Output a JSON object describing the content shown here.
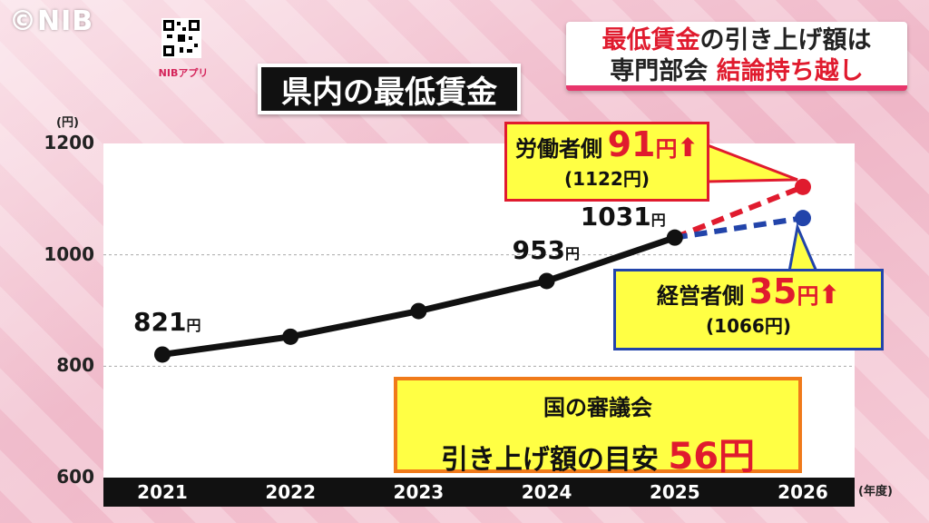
{
  "watermark": "©NIB",
  "qr_label": "NIBアプリ",
  "title": "県内の最低賃金",
  "headline": {
    "line1_red": "最低賃金",
    "line1_rest": "の引き上げ額は",
    "line2_dark": "専門部会",
    "line2_red": "結論持ち越し"
  },
  "colors": {
    "actual": "#111111",
    "worker": "#e01b2e",
    "employer": "#2244aa",
    "accent": "#e8356b"
  },
  "chart_data": {
    "type": "line",
    "y_unit": "(円)",
    "x_unit": "(年度)",
    "ylim": [
      600,
      1200
    ],
    "yticks": [
      600,
      800,
      1000,
      1200
    ],
    "x": [
      "2021",
      "2022",
      "2023",
      "2024",
      "2025",
      "2026"
    ],
    "series": [
      {
        "values": [
          821,
          853,
          899,
          953,
          1031,
          null
        ]
      }
    ],
    "projections": [
      {
        "name": "労働者側",
        "from": [
          "2025",
          1031
        ],
        "to": [
          "2026",
          1122
        ],
        "increase": "91",
        "value_text": "(1122円)"
      },
      {
        "name": "経営者側",
        "from": [
          "2025",
          1031
        ],
        "to": [
          "2026",
          1066
        ],
        "increase": "35",
        "value_text": "(1066円)"
      }
    ],
    "data_labels": [
      {
        "x": "2021",
        "value": "821",
        "unit": "円"
      },
      {
        "x": "2024",
        "value": "953",
        "unit": "円"
      },
      {
        "x": "2025",
        "value": "1031",
        "unit": "円"
      }
    ],
    "grid": true
  },
  "worker_callout": {
    "label": "労働者側",
    "amount": "91",
    "yen": "円",
    "arrow": "⬆",
    "sub": "(1122円)"
  },
  "employer_callout": {
    "label": "経営者側",
    "amount": "35",
    "yen": "円",
    "arrow": "⬆",
    "sub": "(1066円)"
  },
  "guide": {
    "line1": "国の審議会",
    "line2": "引き上げ額の目安",
    "amount": "56円"
  }
}
